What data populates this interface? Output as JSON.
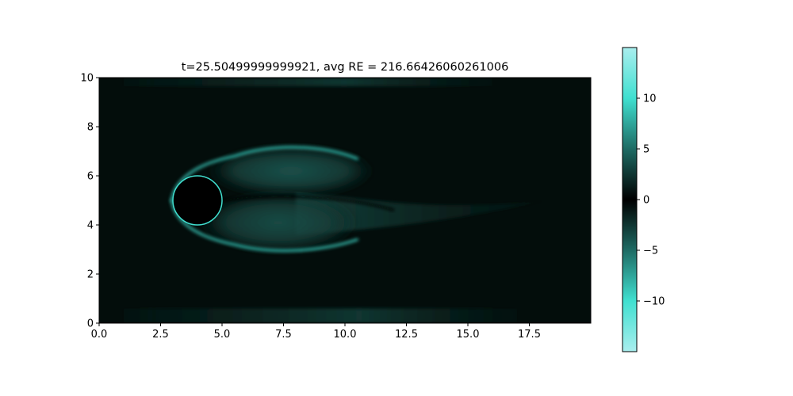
{
  "chart_data": {
    "type": "heatmap",
    "title": "t=25.50499999999921, avg RE = 216.66426060261006",
    "xlim": [
      0,
      20
    ],
    "ylim": [
      0,
      10
    ],
    "x_ticks": [
      0.0,
      2.5,
      5.0,
      7.5,
      10.0,
      12.5,
      15.0,
      17.5
    ],
    "x_tick_labels": [
      "0.0",
      "2.5",
      "5.0",
      "7.5",
      "10.0",
      "12.5",
      "15.0",
      "17.5"
    ],
    "y_ticks": [
      0,
      2,
      4,
      6,
      8,
      10
    ],
    "y_tick_labels": [
      "0",
      "2",
      "4",
      "6",
      "8",
      "10"
    ],
    "colorbar": {
      "range": [
        -15,
        15
      ],
      "ticks": [
        10,
        5,
        0,
        -5,
        -10
      ],
      "tick_labels": [
        "10",
        "5",
        "0",
        "−5",
        "−10"
      ],
      "colors": [
        "#a9eeee",
        "#40e0d0",
        "#1e6b64",
        "#000000",
        "#1e6b64",
        "#40e0d0",
        "#a9eeee"
      ]
    },
    "field": {
      "background_color": "#030d0b",
      "obstacle": {
        "shape": "circle",
        "center": [
          4.0,
          5.0
        ],
        "radius": 1.0
      },
      "features": [
        {
          "name": "upper-wake-lobe",
          "center": [
            7.8,
            6.2
          ],
          "rx": 3.4,
          "ry": 1.0,
          "color": "#1a4a44"
        },
        {
          "name": "lower-wake-lobe",
          "center": [
            7.3,
            4.1
          ],
          "rx": 3.2,
          "ry": 1.2,
          "color": "#1a4a44"
        },
        {
          "name": "upper-shear-layer",
          "color": "#40e0d0"
        },
        {
          "name": "lower-shear-layer",
          "color": "#40e0d0"
        },
        {
          "name": "wake-tail",
          "color": "#173e39"
        },
        {
          "name": "top-wall-layer",
          "color": "#0d2a26"
        },
        {
          "name": "bottom-wall-layer",
          "color": "#0d2a26"
        }
      ]
    }
  }
}
